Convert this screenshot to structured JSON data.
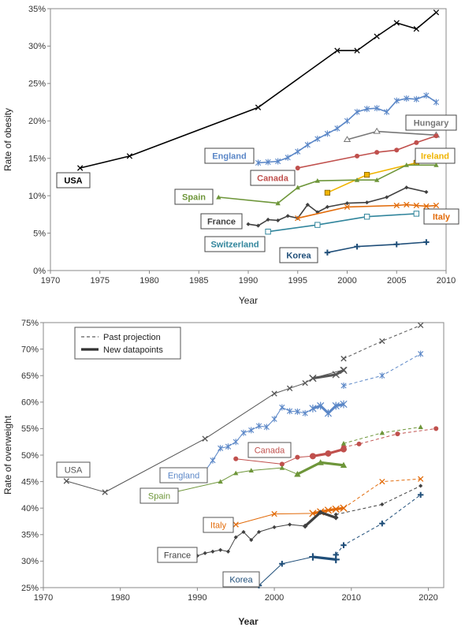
{
  "chart_data": [
    {
      "type": "line",
      "title": "",
      "xlabel": "Year",
      "ylabel": "Rate of obesity",
      "xlim": [
        1970,
        2010
      ],
      "ylim": [
        0,
        35
      ],
      "xticks": [
        1970,
        1975,
        1980,
        1985,
        1990,
        1995,
        2000,
        2005,
        2010
      ],
      "yticks": [
        0,
        5,
        10,
        15,
        20,
        25,
        30,
        35
      ],
      "y_format": "percent",
      "grid": false,
      "series": [
        {
          "name": "USA",
          "color": "#000000",
          "marker": "x",
          "label_box": true,
          "x": [
            1973,
            1978,
            1991,
            1999,
            2001,
            2003,
            2005,
            2007,
            2009
          ],
          "y": [
            13.7,
            15.3,
            21.8,
            29.4,
            29.4,
            31.3,
            33.1,
            32.3,
            34.5
          ]
        },
        {
          "name": "England",
          "color": "#5b87c7",
          "marker": "asterisk",
          "label_box": true,
          "x": [
            1991,
            1992,
            1993,
            1994,
            1995,
            1996,
            1997,
            1998,
            1999,
            2000,
            2001,
            2002,
            2003,
            2004,
            2005,
            2006,
            2007,
            2008,
            2009
          ],
          "y": [
            14.4,
            14.5,
            14.6,
            15.1,
            15.9,
            16.8,
            17.6,
            18.3,
            19.0,
            20.0,
            21.2,
            21.6,
            21.7,
            21.2,
            22.7,
            23.0,
            22.9,
            23.4,
            22.5
          ]
        },
        {
          "name": "Hungary",
          "color": "#777777",
          "marker": "open-triangle",
          "label_box": true,
          "x": [
            2000,
            2003,
            2009
          ],
          "y": [
            17.5,
            18.6,
            18.1
          ]
        },
        {
          "name": "Canada",
          "color": "#c0504d",
          "marker": "dot",
          "label_box": true,
          "x": [
            1995,
            2001,
            2003,
            2005,
            2007,
            2009
          ],
          "y": [
            13.7,
            15.3,
            15.8,
            16.1,
            17.1,
            18.0
          ]
        },
        {
          "name": "Ireland",
          "color": "#f0b400",
          "marker": "square",
          "label_box": true,
          "x": [
            1998,
            2002,
            2007,
            2009
          ],
          "y": [
            10.4,
            12.8,
            14.4,
            14.9
          ]
        },
        {
          "name": "Spain",
          "color": "#6e963a",
          "marker": "triangle",
          "label_box": true,
          "x": [
            1987,
            1993,
            1995,
            1997,
            2001,
            2003,
            2006,
            2009
          ],
          "y": [
            9.8,
            9.0,
            11.1,
            12.0,
            12.1,
            12.1,
            14.1,
            14.1
          ]
        },
        {
          "name": "France",
          "color": "#404040",
          "marker": "diamond",
          "label_box": true,
          "x": [
            1990,
            1991,
            1992,
            1993,
            1994,
            1995,
            1996,
            1997,
            1998,
            2000,
            2002,
            2004,
            2006,
            2008
          ],
          "y": [
            6.2,
            6.0,
            6.8,
            6.7,
            7.3,
            7.0,
            8.8,
            7.8,
            8.5,
            9.0,
            9.1,
            9.8,
            11.1,
            10.5
          ]
        },
        {
          "name": "Italy",
          "color": "#e26b0a",
          "marker": "x",
          "label_box": true,
          "x": [
            1995,
            2000,
            2005,
            2006,
            2007,
            2008,
            2009
          ],
          "y": [
            7.0,
            8.5,
            8.7,
            8.8,
            8.7,
            8.6,
            8.7
          ]
        },
        {
          "name": "Switzerland",
          "color": "#31859c",
          "marker": "open-square",
          "label_box": true,
          "x": [
            1992,
            1997,
            2002,
            2007
          ],
          "y": [
            5.2,
            6.1,
            7.2,
            7.6
          ]
        },
        {
          "name": "Korea",
          "color": "#1f4e79",
          "marker": "plus",
          "label_box": true,
          "x": [
            1998,
            2001,
            2005,
            2008
          ],
          "y": [
            2.4,
            3.2,
            3.5,
            3.8
          ]
        }
      ]
    },
    {
      "type": "line",
      "title": "",
      "xlabel": "Year",
      "ylabel": "Rate of overweight",
      "xlim": [
        1970,
        2022
      ],
      "ylim": [
        25,
        75
      ],
      "xticks": [
        1970,
        1980,
        1990,
        2000,
        2010,
        2020
      ],
      "yticks": [
        25,
        30,
        35,
        40,
        45,
        50,
        55,
        60,
        65,
        70,
        75
      ],
      "y_format": "percent",
      "grid": false,
      "legend": {
        "position": "top-left",
        "entries": [
          {
            "label": "Past projection",
            "style": "dashed"
          },
          {
            "label": "New datapoints",
            "style": "thick"
          }
        ]
      },
      "series": [
        {
          "name": "USA",
          "color": "#555555",
          "marker": "x",
          "label_box": true,
          "x": [
            1973,
            1978,
            1991,
            2000,
            2002,
            2004,
            2005,
            2009
          ],
          "y": [
            45.1,
            43.0,
            53.1,
            61.6,
            62.6,
            63.6,
            64.5,
            66.1
          ],
          "projection": {
            "x": [
              2009,
              2014,
              2019
            ],
            "y": [
              68.2,
              71.5,
              74.5
            ]
          },
          "new": {
            "x": [
              2005,
              2008,
              2009
            ],
            "y": [
              64.5,
              65.2,
              66.0
            ]
          }
        },
        {
          "name": "England",
          "color": "#5b87c7",
          "marker": "asterisk",
          "label_box": true,
          "x": [
            1991,
            1992,
            1993,
            1994,
            1995,
            1996,
            1997,
            1998,
            1999,
            2000,
            2001,
            2002,
            2003,
            2004,
            2005,
            2006,
            2007,
            2008,
            2009
          ],
          "y": [
            47.0,
            49.0,
            51.3,
            51.6,
            52.5,
            54.2,
            54.7,
            55.5,
            55.3,
            56.8,
            59.0,
            58.3,
            58.2,
            57.9,
            58.8,
            59.3,
            57.9,
            59.3,
            59.6
          ],
          "projection": {
            "x": [
              2009,
              2014,
              2019
            ],
            "y": [
              63.1,
              65.0,
              69.1
            ]
          },
          "new": {
            "x": [
              2005,
              2006,
              2007,
              2008,
              2009
            ],
            "y": [
              58.8,
              59.3,
              57.9,
              59.3,
              59.6
            ]
          }
        },
        {
          "name": "Canada",
          "color": "#c0504d",
          "marker": "dot",
          "label_box": true,
          "x": [
            1995,
            2001,
            2003,
            2005,
            2007,
            2009
          ],
          "y": [
            49.3,
            48.3,
            49.6,
            49.8,
            50.2,
            51.0
          ],
          "projection": {
            "x": [
              2009,
              2011,
              2016,
              2021
            ],
            "y": [
              51.5,
              52.1,
              54.0,
              55.0
            ]
          },
          "new": {
            "x": [
              2005,
              2007,
              2009
            ],
            "y": [
              49.8,
              50.3,
              51.1
            ]
          }
        },
        {
          "name": "Spain",
          "color": "#6e963a",
          "marker": "triangle",
          "label_box": true,
          "x": [
            1987,
            1993,
            1995,
            1997,
            2001,
            2003,
            2006,
            2009
          ],
          "y": [
            43.0,
            45.0,
            46.6,
            47.1,
            47.6,
            46.4,
            48.6,
            48.1
          ],
          "projection": {
            "x": [
              2009,
              2014,
              2019
            ],
            "y": [
              52.2,
              54.2,
              55.3
            ]
          },
          "new": {
            "x": [
              2003,
              2006,
              2009
            ],
            "y": [
              46.4,
              48.6,
              48.1
            ]
          }
        },
        {
          "name": "Italy",
          "color": "#e26b0a",
          "marker": "x",
          "label_box": true,
          "x": [
            1995,
            2000,
            2005,
            2006,
            2007,
            2008,
            2009
          ],
          "y": [
            36.9,
            38.9,
            39.0,
            39.3,
            39.6,
            39.8,
            40.0
          ],
          "projection": {
            "x": [
              2009,
              2014,
              2019
            ],
            "y": [
              40.0,
              45.0,
              45.5
            ]
          },
          "new": {
            "x": [
              2005,
              2006,
              2007,
              2008,
              2009
            ],
            "y": [
              39.0,
              39.3,
              39.6,
              39.8,
              40.0
            ]
          }
        },
        {
          "name": "France",
          "color": "#404040",
          "marker": "diamond",
          "label_box": true,
          "x": [
            1990,
            1991,
            1992,
            1993,
            1994,
            1995,
            1996,
            1997,
            1998,
            2000,
            2002,
            2004,
            2006,
            2008
          ],
          "y": [
            31.0,
            31.5,
            31.8,
            32.1,
            31.8,
            34.5,
            35.5,
            34.0,
            35.5,
            36.4,
            36.9,
            36.6,
            39.2,
            38.2
          ],
          "projection": {
            "x": [
              2008,
              2014,
              2019
            ],
            "y": [
              38.8,
              40.7,
              44.2
            ]
          },
          "new": {
            "x": [
              2004,
              2006,
              2008
            ],
            "y": [
              36.6,
              39.2,
              38.2
            ]
          }
        },
        {
          "name": "Korea",
          "color": "#1f4e79",
          "marker": "plus",
          "label_box": true,
          "x": [
            1998,
            2001,
            2005,
            2008
          ],
          "y": [
            25.4,
            29.5,
            30.8,
            30.3
          ],
          "projection": {
            "x": [
              2008,
              2009,
              2014,
              2019
            ],
            "y": [
              31.2,
              33.0,
              37.1,
              42.5
            ]
          },
          "new": {
            "x": [
              2005,
              2008
            ],
            "y": [
              30.8,
              30.3
            ]
          }
        }
      ]
    }
  ]
}
